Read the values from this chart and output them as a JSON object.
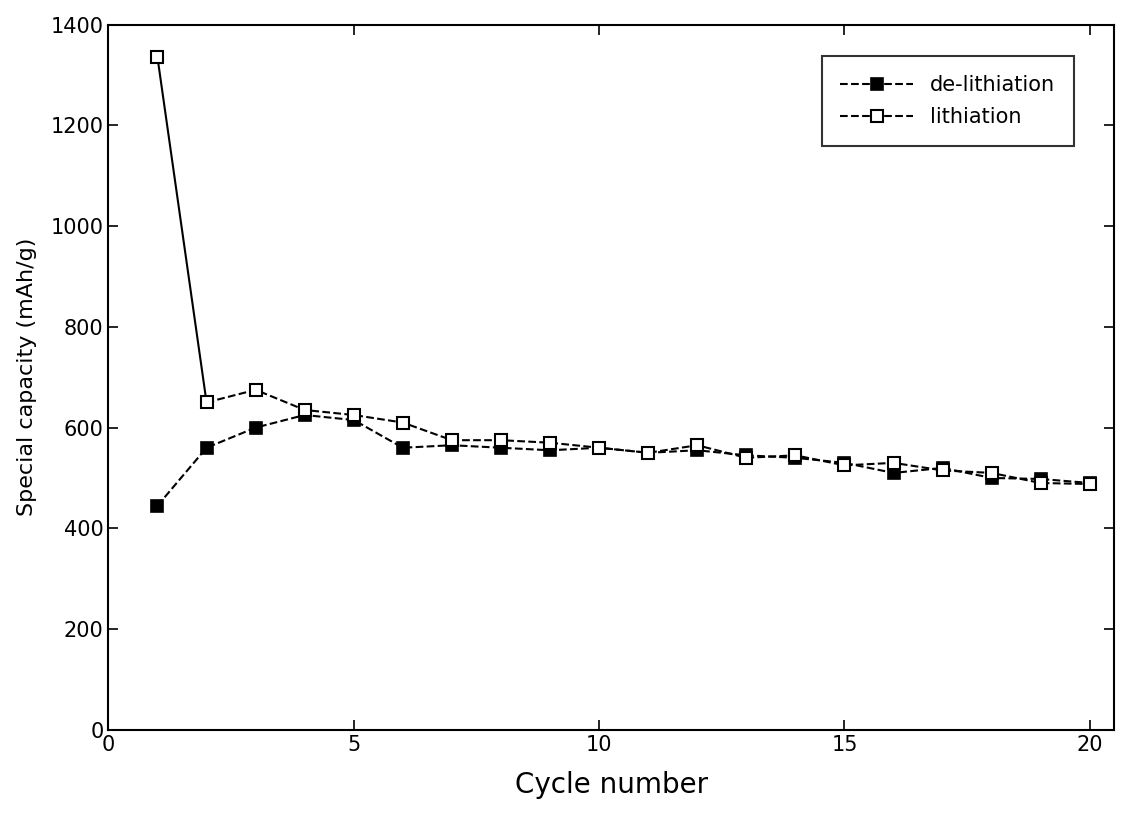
{
  "delithiation_x": [
    1,
    2,
    3,
    4,
    5,
    6,
    7,
    8,
    9,
    10,
    11,
    12,
    13,
    14,
    15,
    16,
    17,
    18,
    19,
    20
  ],
  "delithiation_y": [
    445,
    560,
    600,
    625,
    615,
    560,
    565,
    560,
    555,
    560,
    550,
    555,
    545,
    540,
    530,
    510,
    520,
    500,
    498,
    490
  ],
  "lithiation_x": [
    1,
    2,
    3,
    4,
    5,
    6,
    7,
    8,
    9,
    10,
    11,
    12,
    13,
    14,
    15,
    16,
    17,
    18,
    19,
    20
  ],
  "lithiation_y": [
    1335,
    650,
    675,
    635,
    625,
    610,
    575,
    575,
    570,
    560,
    550,
    565,
    540,
    545,
    525,
    530,
    515,
    510,
    490,
    488
  ],
  "xlabel": "Cycle number",
  "ylabel": "Special capacity (mAh/g)",
  "xlim": [
    0,
    20.5
  ],
  "ylim": [
    0,
    1400
  ],
  "yticks": [
    0,
    200,
    400,
    600,
    800,
    1000,
    1200,
    1400
  ],
  "xticks": [
    0,
    5,
    10,
    15,
    20
  ],
  "legend_delithiation": "de-lithiation",
  "legend_lithiation": "lithiation",
  "line_color": "#000000",
  "linewidth": 1.5,
  "markersize": 9,
  "xlabel_fontsize": 20,
  "ylabel_fontsize": 16,
  "tick_fontsize": 15,
  "legend_fontsize": 15
}
